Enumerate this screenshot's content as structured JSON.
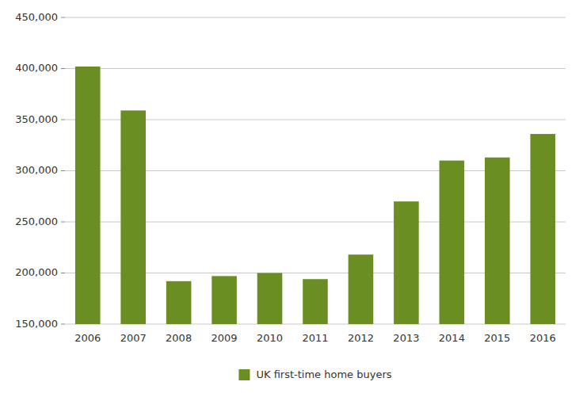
{
  "chart_data": {
    "type": "bar",
    "categories": [
      "2006",
      "2007",
      "2008",
      "2009",
      "2010",
      "2011",
      "2012",
      "2013",
      "2014",
      "2015",
      "2016"
    ],
    "series": [
      {
        "name": "UK first-time home buyers",
        "color": "#6b8e23",
        "values": [
          402000,
          359000,
          192000,
          197000,
          200000,
          194000,
          218000,
          270000,
          310000,
          313000,
          336000
        ]
      }
    ],
    "ylim": [
      150000,
      450000
    ],
    "yticks": [
      {
        "value": 150000,
        "label": "150,000"
      },
      {
        "value": 200000,
        "label": "200,000"
      },
      {
        "value": 250000,
        "label": "250,000"
      },
      {
        "value": 300000,
        "label": "300,000"
      },
      {
        "value": 350000,
        "label": "350,000"
      },
      {
        "value": 400000,
        "label": "400,000"
      },
      {
        "value": 450000,
        "label": "450,000"
      }
    ],
    "grid": true,
    "legend": "bottom"
  }
}
